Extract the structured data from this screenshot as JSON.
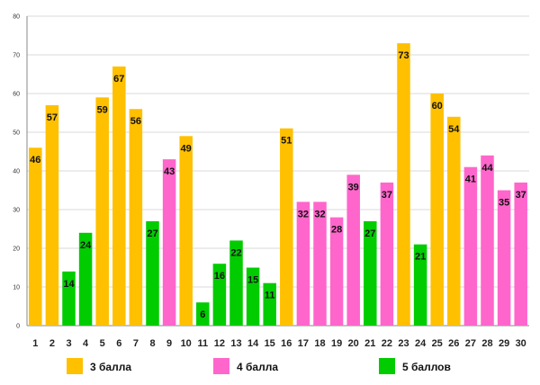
{
  "chart_data": {
    "type": "bar",
    "title": "",
    "xlabel": "",
    "ylabel": "",
    "ylim": [
      0,
      80
    ],
    "yticks": [
      0,
      10,
      20,
      30,
      40,
      50,
      60,
      70,
      80
    ],
    "grid": true,
    "legend_position": "bottom",
    "categories": [
      "1",
      "2",
      "3",
      "4",
      "5",
      "6",
      "7",
      "8",
      "9",
      "10",
      "11",
      "12",
      "13",
      "14",
      "15",
      "16",
      "17",
      "18",
      "19",
      "20",
      "21",
      "22",
      "23",
      "24",
      "25",
      "26",
      "27",
      "28",
      "29",
      "30"
    ],
    "values": [
      46,
      57,
      14,
      24,
      59,
      67,
      56,
      27,
      43,
      49,
      6,
      16,
      22,
      15,
      11,
      51,
      32,
      32,
      28,
      39,
      27,
      37,
      73,
      21,
      60,
      54,
      41,
      44,
      35,
      37
    ],
    "series_ids": [
      "s3",
      "s3",
      "s5",
      "s5",
      "s3",
      "s3",
      "s3",
      "s5",
      "s4",
      "s3",
      "s5",
      "s5",
      "s5",
      "s5",
      "s5",
      "s3",
      "s4",
      "s4",
      "s4",
      "s4",
      "s5",
      "s4",
      "s3",
      "s5",
      "s3",
      "s3",
      "s4",
      "s4",
      "s4",
      "s4"
    ],
    "series": [
      {
        "id": "s3",
        "name": "3 балла",
        "color": "#FFC000"
      },
      {
        "id": "s4",
        "name": "4 балла",
        "color": "#FF66CC"
      },
      {
        "id": "s5",
        "name": "5 баллов",
        "color": "#00CC00"
      }
    ]
  }
}
